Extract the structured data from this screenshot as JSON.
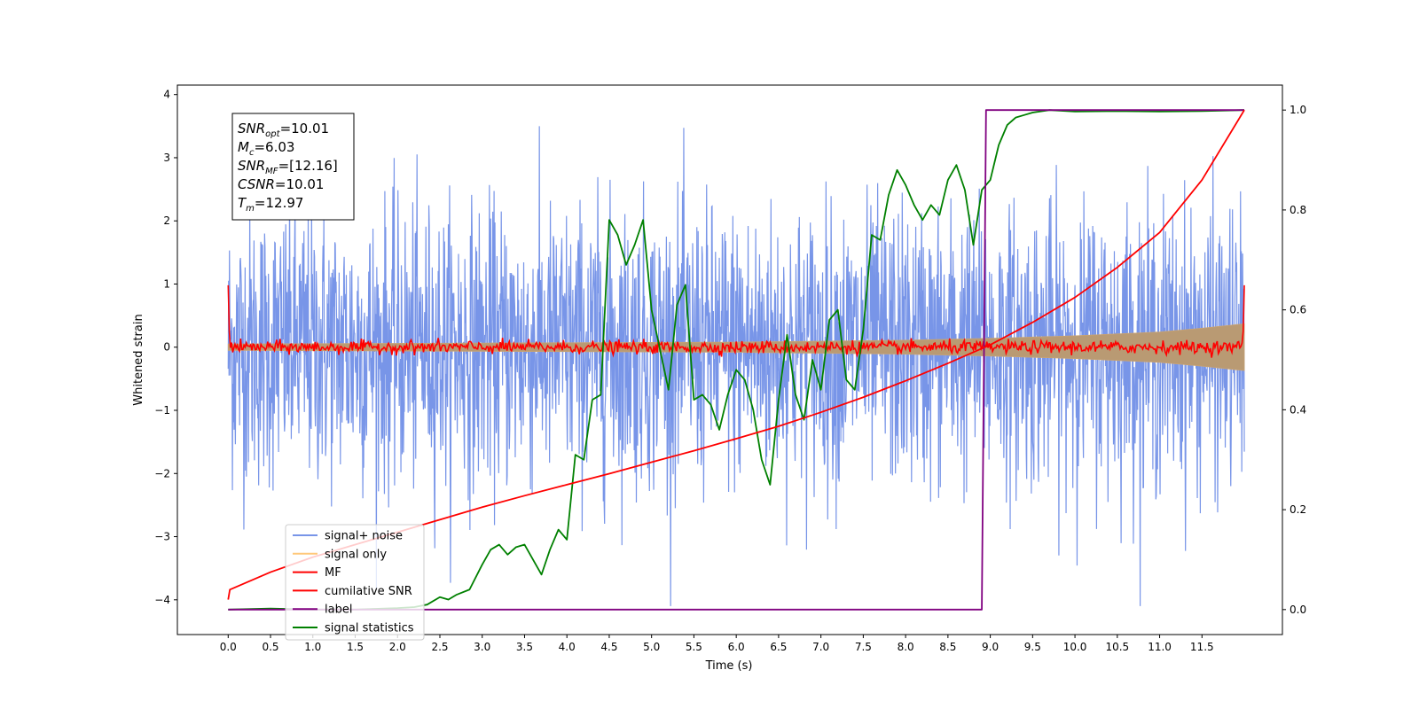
{
  "chart_data": {
    "type": "line",
    "xlabel": "Time (s)",
    "ylabel": "Whitened strain",
    "xlim": [
      -0.6,
      12.45
    ],
    "ylim": [
      -4.55,
      4.15
    ],
    "y2lim": [
      -0.05,
      1.05
    ],
    "xticks": [
      "0.0",
      "0.5",
      "1.0",
      "1.5",
      "2.0",
      "2.5",
      "3.0",
      "3.5",
      "4.0",
      "4.5",
      "5.0",
      "5.5",
      "6.0",
      "6.5",
      "7.0",
      "7.5",
      "8.0",
      "8.5",
      "9.0",
      "9.5",
      "10.0",
      "10.5",
      "11.0",
      "11.5"
    ],
    "yticks": [
      "4",
      "3",
      "2",
      "1",
      "0",
      "−1",
      "−2",
      "−3",
      "−4"
    ],
    "y2ticks": [
      "0.0",
      "0.2",
      "0.4",
      "0.6",
      "0.8",
      "1.0"
    ],
    "grid": false,
    "legend": {
      "position": "lower-left",
      "entries": [
        "signal+ noise",
        "signal only",
        "MF",
        "cumilative SNR",
        "label",
        "signal statistics"
      ]
    },
    "annotation": {
      "lines": [
        {
          "base": "SNR",
          "sub": "opt",
          "value": "=10.01"
        },
        {
          "base": "M",
          "sub": "c",
          "value": "=6.03"
        },
        {
          "base": "SNR",
          "sub": "MF",
          "value": "=[12.16]"
        },
        {
          "base": "CSNR",
          "sub": "",
          "value": "=10.01"
        },
        {
          "base": "T",
          "sub": "m",
          "value": "=12.97"
        }
      ]
    },
    "series": [
      {
        "name": "signal+ noise",
        "axis": "left",
        "color": "#7895e8",
        "description": "white noise, sigma ~1.1, 0 to 12 s",
        "x_range": [
          0,
          12
        ],
        "sigma": 1.1,
        "peak_values": [
          3.5,
          -4.15
        ]
      },
      {
        "name": "signal only",
        "axis": "left",
        "color": "#ffc87a",
        "description": "chirp envelope growing from ~0.05 to ~0.35",
        "x": [
          0,
          2,
          4,
          6,
          8,
          9,
          10,
          11,
          11.5,
          12
        ],
        "envelope": [
          0.05,
          0.06,
          0.07,
          0.08,
          0.11,
          0.14,
          0.18,
          0.24,
          0.3,
          0.37
        ]
      },
      {
        "name": "MF",
        "axis": "left",
        "color": "#ff0000",
        "description": "fluctuation around 0 with edge spikes",
        "x_range": [
          0,
          12
        ],
        "edge_value": 0.98,
        "sigma": 0.05
      },
      {
        "name": "cumilative SNR",
        "axis": "right",
        "color": "#ff0000",
        "x": [
          0.0,
          0.02,
          0.5,
          1.0,
          1.5,
          2.0,
          2.5,
          3.0,
          3.5,
          4.0,
          4.5,
          5.0,
          5.5,
          6.0,
          6.5,
          7.0,
          7.5,
          8.0,
          8.5,
          9.0,
          9.5,
          10.0,
          10.5,
          11.0,
          11.5,
          12.0
        ],
        "y": [
          0.02,
          0.04,
          0.075,
          0.105,
          0.13,
          0.155,
          0.18,
          0.205,
          0.228,
          0.25,
          0.272,
          0.295,
          0.318,
          0.342,
          0.367,
          0.395,
          0.425,
          0.458,
          0.493,
          0.53,
          0.575,
          0.625,
          0.685,
          0.755,
          0.86,
          1.0
        ]
      },
      {
        "name": "label",
        "axis": "right",
        "color": "#800080",
        "x": [
          0,
          8.9,
          8.95,
          12
        ],
        "y": [
          0,
          0,
          1,
          1
        ]
      },
      {
        "name": "signal statistics",
        "axis": "right",
        "color": "#008000",
        "x": [
          0,
          0.5,
          1.0,
          1.5,
          2.0,
          2.2,
          2.35,
          2.5,
          2.6,
          2.7,
          2.85,
          3.0,
          3.1,
          3.2,
          3.3,
          3.4,
          3.5,
          3.6,
          3.7,
          3.8,
          3.9,
          4.0,
          4.1,
          4.2,
          4.3,
          4.4,
          4.5,
          4.6,
          4.7,
          4.8,
          4.9,
          5.0,
          5.1,
          5.2,
          5.3,
          5.4,
          5.5,
          5.6,
          5.7,
          5.8,
          5.9,
          6.0,
          6.1,
          6.2,
          6.3,
          6.4,
          6.5,
          6.6,
          6.7,
          6.8,
          6.9,
          7.0,
          7.1,
          7.2,
          7.3,
          7.4,
          7.5,
          7.6,
          7.7,
          7.8,
          7.9,
          8.0,
          8.1,
          8.2,
          8.3,
          8.4,
          8.5,
          8.6,
          8.7,
          8.8,
          8.9,
          9.0,
          9.1,
          9.2,
          9.3,
          9.4,
          9.5,
          9.7,
          10.0,
          10.5,
          11.0,
          11.5,
          12.0
        ],
        "y": [
          0.0,
          0.002,
          0.0,
          0.0,
          0.003,
          0.005,
          0.01,
          0.025,
          0.02,
          0.03,
          0.04,
          0.09,
          0.12,
          0.13,
          0.11,
          0.125,
          0.13,
          0.1,
          0.07,
          0.12,
          0.16,
          0.14,
          0.31,
          0.3,
          0.42,
          0.43,
          0.78,
          0.75,
          0.69,
          0.73,
          0.78,
          0.6,
          0.52,
          0.44,
          0.61,
          0.65,
          0.42,
          0.43,
          0.41,
          0.36,
          0.43,
          0.48,
          0.46,
          0.4,
          0.3,
          0.25,
          0.42,
          0.55,
          0.43,
          0.38,
          0.5,
          0.44,
          0.58,
          0.6,
          0.46,
          0.44,
          0.56,
          0.75,
          0.74,
          0.83,
          0.88,
          0.85,
          0.81,
          0.78,
          0.81,
          0.79,
          0.86,
          0.89,
          0.84,
          0.73,
          0.84,
          0.86,
          0.93,
          0.97,
          0.985,
          0.99,
          0.995,
          1.0,
          0.997,
          0.998,
          0.997,
          0.998,
          1.0
        ]
      }
    ]
  }
}
